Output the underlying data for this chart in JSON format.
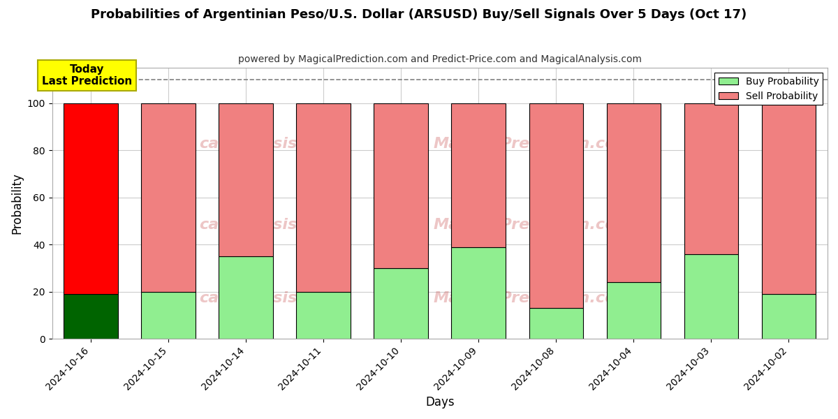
{
  "title": "Probabilities of Argentinian Peso/U.S. Dollar (ARSUSD) Buy/Sell Signals Over 5 Days (Oct 17)",
  "subtitle": "powered by MagicalPrediction.com and Predict-Price.com and MagicalAnalysis.com",
  "xlabel": "Days",
  "ylabel": "Probability",
  "categories": [
    "2024-10-16",
    "2024-10-15",
    "2024-10-14",
    "2024-10-11",
    "2024-10-10",
    "2024-10-09",
    "2024-10-08",
    "2024-10-04",
    "2024-10-03",
    "2024-10-02"
  ],
  "buy_values": [
    19,
    20,
    35,
    20,
    30,
    39,
    13,
    24,
    36,
    19
  ],
  "sell_values": [
    81,
    80,
    65,
    80,
    70,
    61,
    87,
    76,
    64,
    81
  ],
  "today_index": 0,
  "buy_color_today": "#006400",
  "sell_color_today": "#ff0000",
  "buy_color_normal": "#90ee90",
  "sell_color_normal": "#f08080",
  "today_label_bg": "#ffff00",
  "today_label_text": "Today\nLast Prediction",
  "legend_buy": "Buy Probability",
  "legend_sell": "Sell Probability",
  "ylim": [
    0,
    115
  ],
  "yticks": [
    0,
    20,
    40,
    60,
    80,
    100
  ],
  "dashed_line_y": 110,
  "background_color": "#ffffff",
  "grid_color": "#cccccc",
  "bar_edge_color": "#000000",
  "bar_width": 0.7
}
